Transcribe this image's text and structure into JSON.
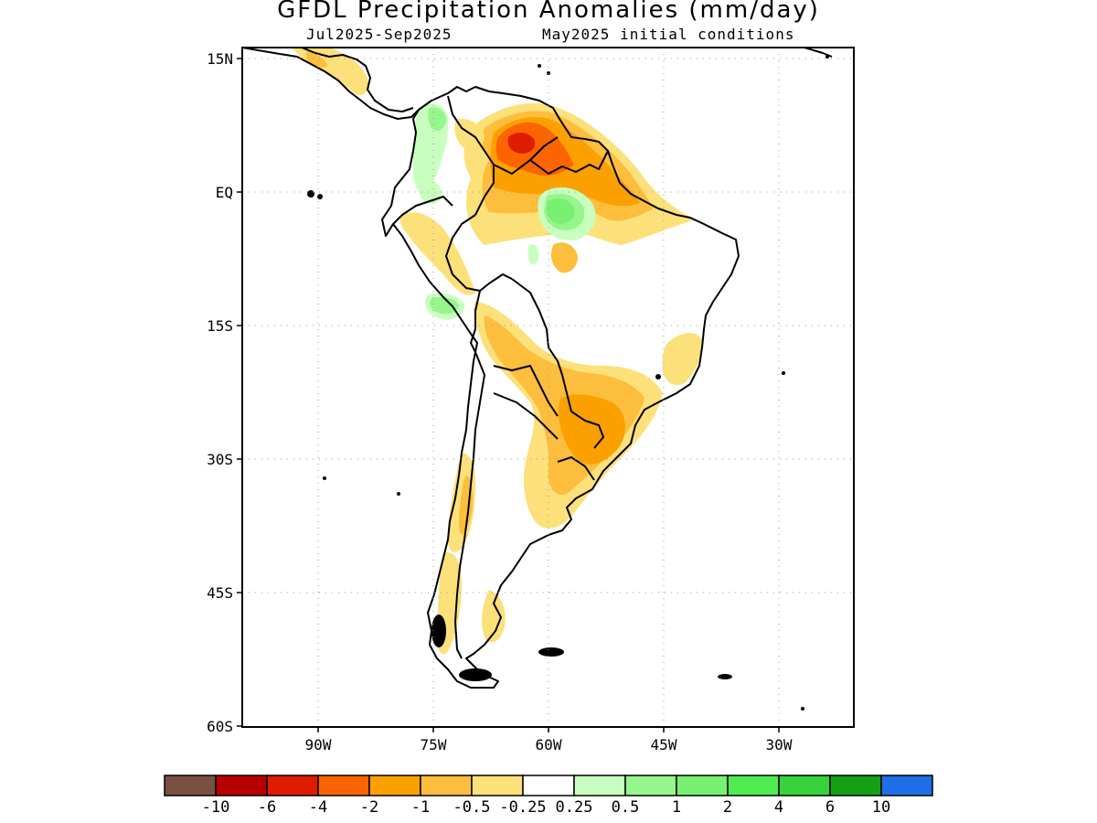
{
  "title": "GFDL Precipitation Anomalies (mm/day)",
  "subtitle_left": "Jul2025-Sep2025",
  "subtitle_right": "May2025 initial conditions",
  "lat_labels": [
    "15N",
    "EQ",
    "15S",
    "30S",
    "45S",
    "60S"
  ],
  "lon_labels": [
    "90W",
    "75W",
    "60W",
    "45W",
    "30W"
  ],
  "colorbar": {
    "colors": [
      "#7a5043",
      "#b80000",
      "#e01c00",
      "#fc6400",
      "#fca000",
      "#fcbe3c",
      "#fce07a",
      "#ffffff",
      "#c8ffbe",
      "#96f58c",
      "#78f070",
      "#50eb50",
      "#37d23c",
      "#14a014",
      "#1e6ee6"
    ],
    "labels": [
      "-10",
      "-6",
      "-4",
      "-2",
      "-1",
      "-0.5",
      "-0.25",
      "0.25",
      "0.5",
      "1",
      "2",
      "4",
      "6",
      "10"
    ]
  }
}
